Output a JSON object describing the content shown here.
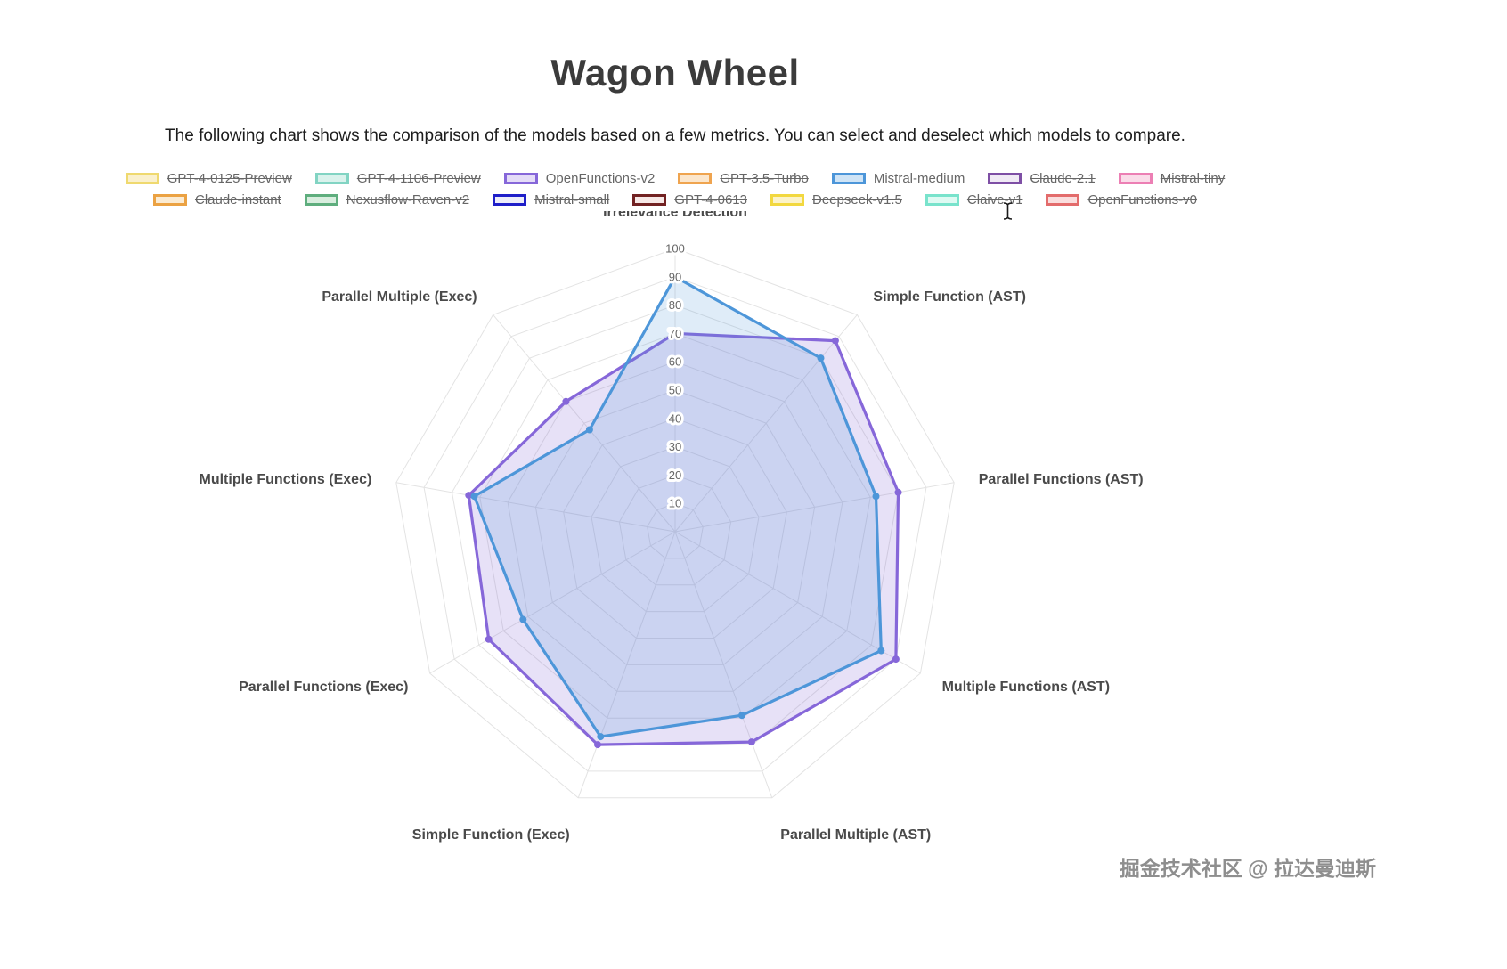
{
  "page": {
    "title": "Wagon Wheel",
    "subtitle": "The following chart shows the comparison of the models based on a few metrics. You can select and deselect which models to compare.",
    "watermark": "掘金技术社区 @ 拉达曼迪斯"
  },
  "legend": {
    "rows": [
      [
        {
          "label": "GPT-4-0125-Preview",
          "fill": "#FAF0CC",
          "border": "#EFD96F",
          "active": false
        },
        {
          "label": "GPT-4-1106-Preview",
          "fill": "#D9F2EC",
          "border": "#82D4C3",
          "active": false
        },
        {
          "label": "OpenFunctions-v2",
          "fill": "#E4DCF7",
          "border": "#8667D9",
          "active": true
        },
        {
          "label": "GPT-3.5-Turbo",
          "fill": "#FBE6CC",
          "border": "#EFA44F",
          "active": false
        },
        {
          "label": "Mistral-medium",
          "fill": "#CFE4F6",
          "border": "#4D96D9",
          "active": true
        },
        {
          "label": "Claude-2.1",
          "fill": "#F0EAF5",
          "border": "#7E4FA5",
          "active": false
        },
        {
          "label": "Mistral-tiny",
          "fill": "#FADCE9",
          "border": "#EC7FB4",
          "active": false
        }
      ],
      [
        {
          "label": "Claude-instant",
          "fill": "#FBEBD2",
          "border": "#EBA243",
          "active": false
        },
        {
          "label": "Nexusflow-Raven-v2",
          "fill": "#D9EEDF",
          "border": "#5FAE7E",
          "active": false
        },
        {
          "label": "Mistral-small",
          "fill": "#EDEDFA",
          "border": "#1F1FC9",
          "active": false
        },
        {
          "label": "GPT-4-0613",
          "fill": "#F7E8E6",
          "border": "#722222",
          "active": false
        },
        {
          "label": "Deepseek-v1.5",
          "fill": "#FCF3C8",
          "border": "#F2D83F",
          "active": false
        },
        {
          "label": "Claive-v1",
          "fill": "#DFFAF3",
          "border": "#79E3CC",
          "active": false
        },
        {
          "label": "OpenFunctions-v0",
          "fill": "#FADEDE",
          "border": "#E36C6C",
          "active": false
        }
      ]
    ]
  },
  "chart_data": {
    "type": "radar",
    "axes": [
      "Irrelevance Detection",
      "Simple Function (AST)",
      "Parallel Functions (AST)",
      "Multiple Functions (AST)",
      "Parallel Multiple (AST)",
      "Simple Function (Exec)",
      "Parallel Functions (Exec)",
      "Multiple Functions (Exec)",
      "Parallel Multiple (Exec)"
    ],
    "max": 100,
    "tick_step": 10,
    "ticks": [
      10,
      20,
      30,
      40,
      50,
      60,
      70,
      80,
      90,
      100
    ],
    "grid": true,
    "legend_position": "top",
    "series": [
      {
        "name": "OpenFunctions-v2",
        "color": "#8667D9",
        "fill": "rgba(134,103,217,0.2)",
        "values": [
          70,
          88,
          80,
          90,
          79,
          80,
          76,
          74,
          60
        ]
      },
      {
        "name": "Mistral-medium",
        "color": "#4D96D9",
        "fill": "rgba(77,150,217,0.18)",
        "values": [
          90,
          80,
          72,
          84,
          69,
          77,
          62,
          72,
          47
        ]
      }
    ]
  }
}
